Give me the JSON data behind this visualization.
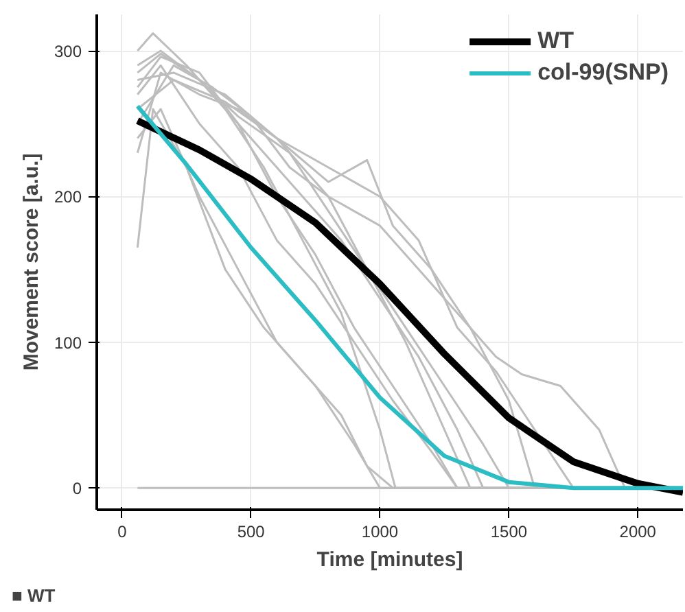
{
  "chart_data": {
    "type": "line",
    "xlabel": "Time [minutes]",
    "ylabel": "Movement score [a.u.]",
    "xlim": [
      -98,
      2175
    ],
    "ylim": [
      -15,
      325
    ],
    "xticks": [
      0,
      500,
      1000,
      1500,
      2000
    ],
    "yticks": [
      0,
      100,
      200,
      300
    ],
    "grid": true,
    "legend": "top right",
    "line_style": "solid",
    "marker": "none",
    "annotations": [
      "■ WT"
    ],
    "series": [
      {
        "color": "#bdbdbd",
        "x": [
          60,
          120,
          250,
          400,
          550,
          700,
          850,
          1000,
          1060,
          2175
        ],
        "values": [
          300,
          312,
          290,
          260,
          220,
          170,
          120,
          40,
          0,
          0
        ]
      },
      {
        "color": "#bdbdbd",
        "x": [
          60,
          150,
          300,
          450,
          600,
          750,
          900,
          1050,
          1200,
          1300,
          2175
        ],
        "values": [
          275,
          296,
          285,
          250,
          200,
          160,
          110,
          70,
          30,
          0,
          0
        ]
      },
      {
        "color": "#bdbdbd",
        "x": [
          60,
          150,
          300,
          500,
          700,
          850,
          1000,
          1150,
          1300,
          1400,
          2175
        ],
        "values": [
          290,
          300,
          280,
          240,
          200,
          170,
          130,
          90,
          40,
          0,
          0
        ]
      },
      {
        "color": "#bdbdbd",
        "x": [
          60,
          200,
          350,
          500,
          650,
          800,
          950,
          1100,
          1250,
          1400,
          1500,
          2175
        ],
        "values": [
          250,
          290,
          275,
          255,
          220,
          200,
          150,
          110,
          70,
          30,
          0,
          0
        ]
      },
      {
        "color": "#bdbdbd",
        "x": [
          60,
          200,
          400,
          600,
          800,
          950,
          1050,
          1200,
          1350,
          1500,
          1600,
          2175
        ],
        "values": [
          280,
          285,
          270,
          240,
          210,
          225,
          180,
          150,
          110,
          60,
          0,
          0
        ]
      },
      {
        "color": "#bdbdbd",
        "x": [
          60,
          150,
          300,
          450,
          600,
          800,
          1000,
          1150,
          1300,
          1450,
          1600,
          1750,
          2175
        ],
        "values": [
          230,
          285,
          270,
          260,
          240,
          220,
          200,
          170,
          110,
          80,
          40,
          0,
          0
        ]
      },
      {
        "color": "#bdbdbd",
        "x": [
          60,
          200,
          400,
          600,
          800,
          1000,
          1150,
          1300,
          1450,
          1550,
          1700,
          1850,
          1950,
          2175
        ],
        "values": [
          260,
          280,
          265,
          240,
          200,
          180,
          150,
          120,
          90,
          78,
          70,
          40,
          0,
          0
        ]
      },
      {
        "color": "#bdbdbd",
        "x": [
          60,
          150,
          300,
          450,
          600,
          750,
          900,
          1000,
          2175
        ],
        "values": [
          240,
          260,
          200,
          150,
          100,
          70,
          30,
          0,
          0
        ]
      },
      {
        "color": "#bdbdbd",
        "x": [
          60,
          120,
          250,
          400,
          550,
          700,
          850,
          950,
          1050,
          2175
        ],
        "values": [
          165,
          260,
          220,
          150,
          110,
          80,
          50,
          15,
          0,
          0
        ]
      },
      {
        "color": "#bdbdbd",
        "x": [
          60,
          150,
          300,
          450,
          600,
          750,
          900,
          1050,
          1200,
          1300,
          2175
        ],
        "values": [
          270,
          290,
          250,
          220,
          170,
          140,
          100,
          60,
          25,
          0,
          0
        ]
      },
      {
        "color": "#bdbdbd",
        "x": [
          60,
          150,
          300,
          450,
          650,
          800,
          950,
          1100,
          1200,
          1350,
          2175
        ],
        "values": [
          285,
          298,
          280,
          255,
          230,
          190,
          150,
          100,
          60,
          0,
          0
        ]
      },
      {
        "color": "#bdbdbd",
        "x": [
          60,
          2175
        ],
        "values": [
          0,
          0
        ]
      },
      {
        "name": "WT",
        "color": "#000000",
        "x": [
          60,
          300,
          500,
          750,
          1000,
          1250,
          1500,
          1750,
          2000,
          2175
        ],
        "values": [
          252,
          232,
          212,
          182,
          140,
          92,
          48,
          18,
          3,
          -3
        ]
      },
      {
        "name": "col-99(SNP)",
        "color": "#2bbcc4",
        "x": [
          60,
          250,
          500,
          750,
          1000,
          1250,
          1500,
          1750,
          2000,
          2175
        ],
        "values": [
          262,
          222,
          165,
          115,
          62,
          22,
          4,
          0,
          0,
          0
        ]
      }
    ]
  }
}
